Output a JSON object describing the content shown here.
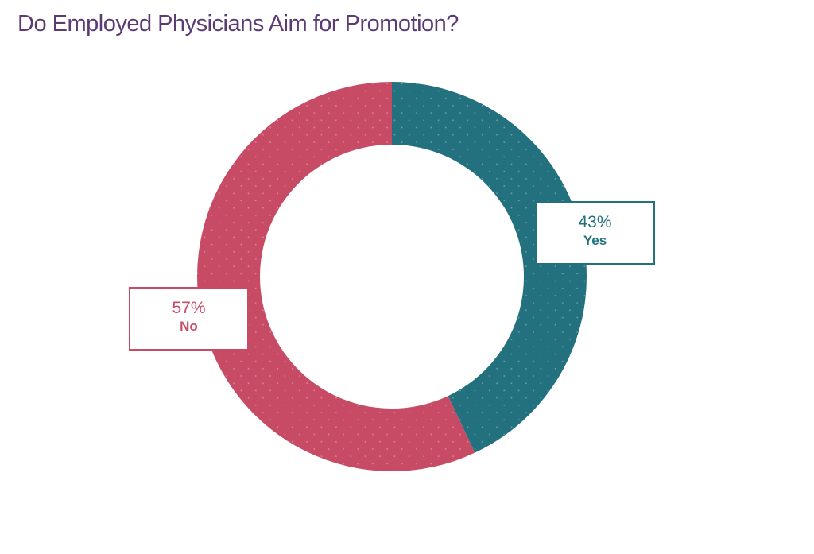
{
  "chart_data": {
    "type": "pie",
    "title": "Do Employed Physicians Aim for Promotion?",
    "slices": [
      {
        "label": "Yes",
        "value": 43,
        "display": "43%",
        "color": "#23717f"
      },
      {
        "label": "No",
        "value": 57,
        "display": "57%",
        "color": "#c84b66"
      }
    ],
    "title_color": "#5b3b72",
    "donut": true
  }
}
